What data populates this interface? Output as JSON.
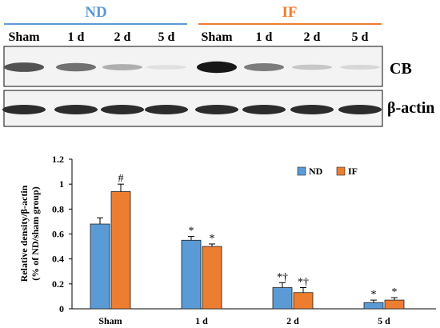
{
  "blot": {
    "group_labels": [
      "ND",
      "IF"
    ],
    "group_colors": [
      "#5b9bd5",
      "#ed7d31"
    ],
    "lane_labels": [
      "Sham",
      "1 d",
      "2 d",
      "5 d",
      "Sham",
      "1 d",
      "2 d",
      "5 d"
    ],
    "row_labels": [
      "CB",
      "β-actin"
    ],
    "cb_band_intensity": [
      0.68,
      0.55,
      0.28,
      0.06,
      0.94,
      0.5,
      0.17,
      0.1
    ],
    "actin_band_intensity": [
      0.85,
      0.85,
      0.85,
      0.85,
      0.85,
      0.85,
      0.85,
      0.85
    ]
  },
  "chart_data": {
    "type": "bar",
    "categories": [
      "Sham",
      "1 d",
      "2 d",
      "5 d"
    ],
    "series": [
      {
        "name": "ND",
        "color": "#5b9bd5",
        "values": [
          0.68,
          0.55,
          0.17,
          0.05
        ],
        "errors": [
          0.05,
          0.03,
          0.04,
          0.02
        ],
        "annotations": [
          "",
          "*",
          "*†",
          "*"
        ]
      },
      {
        "name": "IF",
        "color": "#ed7d31",
        "values": [
          0.94,
          0.5,
          0.13,
          0.07
        ],
        "errors": [
          0.06,
          0.02,
          0.04,
          0.02
        ],
        "annotations": [
          "#",
          "*",
          "*†",
          "*"
        ]
      }
    ],
    "ylabel_line1": "Relative density/β-actin",
    "ylabel_line2": "(% of ND/sham group)",
    "ylim": [
      0,
      1.2
    ],
    "yticks": [
      "0",
      "0.2",
      "0.4",
      "0.6",
      "0.8",
      "1",
      "1.2"
    ],
    "legend_position": "top-right",
    "grid": false
  }
}
